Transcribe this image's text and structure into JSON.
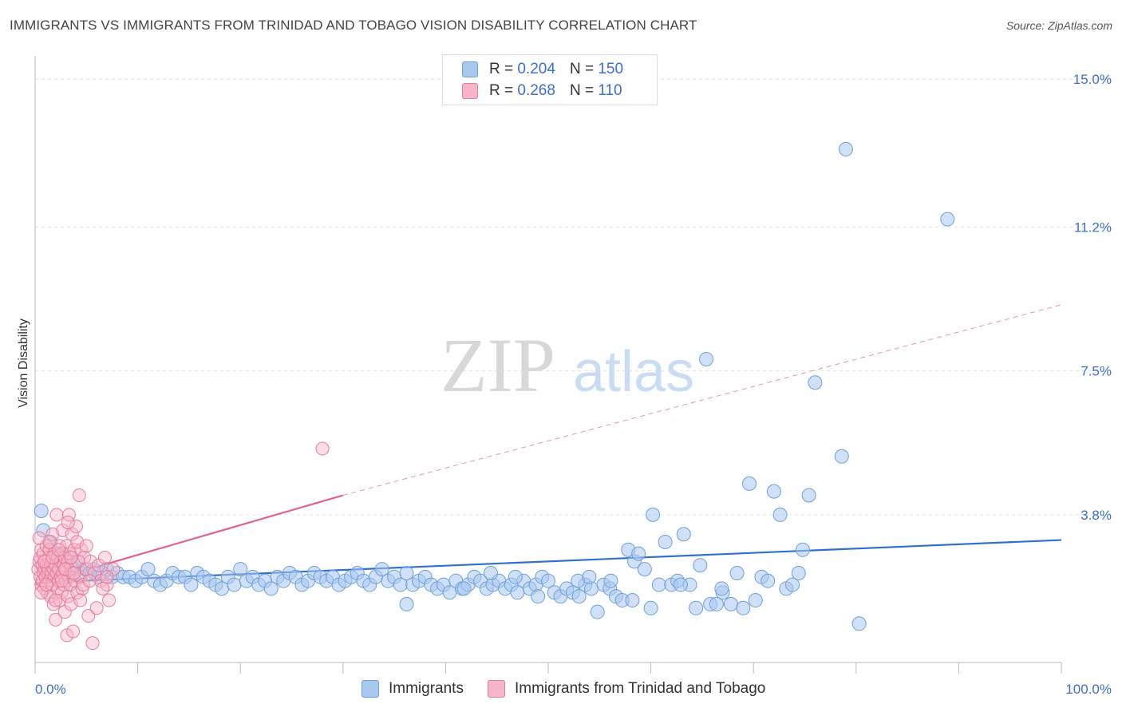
{
  "title": "IMMIGRANTS VS IMMIGRANTS FROM TRINIDAD AND TOBAGO VISION DISABILITY CORRELATION CHART",
  "source": "Source: ZipAtlas.com",
  "watermark": {
    "zip": "ZIP",
    "atlas": "atlas"
  },
  "legend": {
    "rows": [
      {
        "r_label": "R =",
        "r_value": "0.204",
        "n_label": "N =",
        "n_value": "150"
      },
      {
        "r_label": "R =",
        "r_value": "0.268",
        "n_label": "N =",
        "n_value": "110"
      }
    ]
  },
  "bottom_legend": {
    "series1": "Immigrants",
    "series2": "Immigrants from Trinidad and Tobago"
  },
  "colors": {
    "blue_fill": "#a9c8f0",
    "blue_stroke": "#6f9fd8",
    "blue_line": "#2e6fd0",
    "pink_fill": "#f6b6c8",
    "pink_stroke": "#e57d9d",
    "pink_line": "#e0648c",
    "tick_label": "#3b6fd1",
    "grid": "#e3e3e3"
  },
  "chart_data": {
    "type": "scatter",
    "title": "IMMIGRANTS VS IMMIGRANTS FROM TRINIDAD AND TOBAGO VISION DISABILITY CORRELATION CHART",
    "xlabel": "",
    "ylabel": "Vision Disability",
    "xlim": [
      0,
      100
    ],
    "ylim": [
      0,
      15.6
    ],
    "x_tick_labels": [
      "0.0%",
      "100.0%"
    ],
    "y_ticks": [
      3.8,
      7.5,
      11.2,
      15.0
    ],
    "y_tick_labels": [
      "3.8%",
      "7.5%",
      "11.2%",
      "15.0%"
    ],
    "series": [
      {
        "name": "Immigrants",
        "R": 0.204,
        "N": 150,
        "trend": {
          "x0": 0,
          "y0": 2.05,
          "x1": 100,
          "y1": 3.15
        },
        "points": [
          [
            0.6,
            3.9
          ],
          [
            0.8,
            3.4
          ],
          [
            1.5,
            3.1
          ],
          [
            1.9,
            2.8
          ],
          [
            2.2,
            2.8
          ],
          [
            2.5,
            2.6
          ],
          [
            2.8,
            2.8
          ],
          [
            3.1,
            2.5
          ],
          [
            3.4,
            2.7
          ],
          [
            3.8,
            2.4
          ],
          [
            4.2,
            2.6
          ],
          [
            4.5,
            2.3
          ],
          [
            4.9,
            2.4
          ],
          [
            5.3,
            2.3
          ],
          [
            5.7,
            2.4
          ],
          [
            6.2,
            2.2
          ],
          [
            6.6,
            2.3
          ],
          [
            7.0,
            2.4
          ],
          [
            7.5,
            2.2
          ],
          [
            8.0,
            2.3
          ],
          [
            8.6,
            2.2
          ],
          [
            9.2,
            2.2
          ],
          [
            9.8,
            2.1
          ],
          [
            10.4,
            2.2
          ],
          [
            11.0,
            2.4
          ],
          [
            11.6,
            2.1
          ],
          [
            12.2,
            2.0
          ],
          [
            12.8,
            2.1
          ],
          [
            13.4,
            2.3
          ],
          [
            14.0,
            2.2
          ],
          [
            14.6,
            2.2
          ],
          [
            15.2,
            2.0
          ],
          [
            15.8,
            2.3
          ],
          [
            16.4,
            2.2
          ],
          [
            17.0,
            2.1
          ],
          [
            17.6,
            2.0
          ],
          [
            18.2,
            1.9
          ],
          [
            18.8,
            2.2
          ],
          [
            19.4,
            2.0
          ],
          [
            20.0,
            2.4
          ],
          [
            20.6,
            2.1
          ],
          [
            21.2,
            2.2
          ],
          [
            21.8,
            2.0
          ],
          [
            22.4,
            2.1
          ],
          [
            23.0,
            1.9
          ],
          [
            23.6,
            2.2
          ],
          [
            24.2,
            2.1
          ],
          [
            24.8,
            2.3
          ],
          [
            25.4,
            2.2
          ],
          [
            26.0,
            2.0
          ],
          [
            26.6,
            2.1
          ],
          [
            27.2,
            2.3
          ],
          [
            27.8,
            2.2
          ],
          [
            28.4,
            2.1
          ],
          [
            29.0,
            2.2
          ],
          [
            29.6,
            2.0
          ],
          [
            30.2,
            2.1
          ],
          [
            30.8,
            2.2
          ],
          [
            31.4,
            2.3
          ],
          [
            32.0,
            2.1
          ],
          [
            32.6,
            2.0
          ],
          [
            33.2,
            2.2
          ],
          [
            33.8,
            2.4
          ],
          [
            34.4,
            2.1
          ],
          [
            35.0,
            2.2
          ],
          [
            35.6,
            2.0
          ],
          [
            36.2,
            2.3
          ],
          [
            36.8,
            2.0
          ],
          [
            37.4,
            2.1
          ],
          [
            38.0,
            2.2
          ],
          [
            38.6,
            2.0
          ],
          [
            39.2,
            1.9
          ],
          [
            39.8,
            2.0
          ],
          [
            40.4,
            1.8
          ],
          [
            41.0,
            2.1
          ],
          [
            41.6,
            1.9
          ],
          [
            42.2,
            2.0
          ],
          [
            42.8,
            2.2
          ],
          [
            43.4,
            2.1
          ],
          [
            44.0,
            1.9
          ],
          [
            44.6,
            2.0
          ],
          [
            45.2,
            2.1
          ],
          [
            45.8,
            1.9
          ],
          [
            46.4,
            2.0
          ],
          [
            47.0,
            1.8
          ],
          [
            47.6,
            2.1
          ],
          [
            48.2,
            1.9
          ],
          [
            48.8,
            2.0
          ],
          [
            49.4,
            2.2
          ],
          [
            50.0,
            2.1
          ],
          [
            50.6,
            1.8
          ],
          [
            51.2,
            1.7
          ],
          [
            51.8,
            1.9
          ],
          [
            52.4,
            1.8
          ],
          [
            53.0,
            1.7
          ],
          [
            53.6,
            2.0
          ],
          [
            54.2,
            1.9
          ],
          [
            54.8,
            1.3
          ],
          [
            55.4,
            2.0
          ],
          [
            56.0,
            1.9
          ],
          [
            56.6,
            1.7
          ],
          [
            57.2,
            1.6
          ],
          [
            57.8,
            2.9
          ],
          [
            58.4,
            2.6
          ],
          [
            58.8,
            2.8
          ],
          [
            59.4,
            2.4
          ],
          [
            60.2,
            3.8
          ],
          [
            60.8,
            2.0
          ],
          [
            61.4,
            3.1
          ],
          [
            62.0,
            2.0
          ],
          [
            62.6,
            2.1
          ],
          [
            63.2,
            3.3
          ],
          [
            63.8,
            2.0
          ],
          [
            64.4,
            1.4
          ],
          [
            64.8,
            2.5
          ],
          [
            65.4,
            7.8
          ],
          [
            65.8,
            1.5
          ],
          [
            66.4,
            1.5
          ],
          [
            67.0,
            1.8
          ],
          [
            67.8,
            1.5
          ],
          [
            68.4,
            2.3
          ],
          [
            69.0,
            1.4
          ],
          [
            69.6,
            4.6
          ],
          [
            70.2,
            1.6
          ],
          [
            70.8,
            2.2
          ],
          [
            71.4,
            2.1
          ],
          [
            72.0,
            4.4
          ],
          [
            72.6,
            3.8
          ],
          [
            73.2,
            1.9
          ],
          [
            73.8,
            2.0
          ],
          [
            74.4,
            2.3
          ],
          [
            74.8,
            2.9
          ],
          [
            75.4,
            4.3
          ],
          [
            76.0,
            7.2
          ],
          [
            78.6,
            5.3
          ],
          [
            79.0,
            13.2
          ],
          [
            80.3,
            1.0
          ],
          [
            88.9,
            11.4
          ],
          [
            36.2,
            1.5
          ],
          [
            41.8,
            1.9
          ],
          [
            44.4,
            2.3
          ],
          [
            46.8,
            2.2
          ],
          [
            49.0,
            1.7
          ],
          [
            52.9,
            2.1
          ],
          [
            54.0,
            2.2
          ],
          [
            56.1,
            2.1
          ],
          [
            58.2,
            1.6
          ],
          [
            60.0,
            1.4
          ],
          [
            62.9,
            2.0
          ],
          [
            66.9,
            1.9
          ]
        ]
      },
      {
        "name": "Immigrants from Trinidad and Tobago",
        "R": 0.268,
        "N": 110,
        "trend": {
          "x0": 0,
          "y0": 2.0,
          "x1": 30,
          "y1": 4.3
        },
        "trend_dashed": {
          "x0": 30,
          "y0": 4.3,
          "x1": 100,
          "y1": 9.2
        },
        "points": [
          [
            0.3,
            2.4
          ],
          [
            0.4,
            2.6
          ],
          [
            0.5,
            2.2
          ],
          [
            0.5,
            2.7
          ],
          [
            0.6,
            2.9
          ],
          [
            0.6,
            2.0
          ],
          [
            0.7,
            2.5
          ],
          [
            0.7,
            2.1
          ],
          [
            0.8,
            2.3
          ],
          [
            0.8,
            2.8
          ],
          [
            0.9,
            2.4
          ],
          [
            0.9,
            1.9
          ],
          [
            1.0,
            2.6
          ],
          [
            1.0,
            2.2
          ],
          [
            1.1,
            2.5
          ],
          [
            1.1,
            3.0
          ],
          [
            1.2,
            2.3
          ],
          [
            1.2,
            1.8
          ],
          [
            1.3,
            2.7
          ],
          [
            1.3,
            2.4
          ],
          [
            1.4,
            2.1
          ],
          [
            1.4,
            2.9
          ],
          [
            1.5,
            2.5
          ],
          [
            1.5,
            1.7
          ],
          [
            1.6,
            2.3
          ],
          [
            1.6,
            2.6
          ],
          [
            1.7,
            2.0
          ],
          [
            1.7,
            3.3
          ],
          [
            1.8,
            2.4
          ],
          [
            1.8,
            1.5
          ],
          [
            1.9,
            2.8
          ],
          [
            1.9,
            2.2
          ],
          [
            2.0,
            2.5
          ],
          [
            2.0,
            1.1
          ],
          [
            2.1,
            2.3
          ],
          [
            2.1,
            3.8
          ],
          [
            2.2,
            2.7
          ],
          [
            2.2,
            1.9
          ],
          [
            2.3,
            2.4
          ],
          [
            2.3,
            2.1
          ],
          [
            2.4,
            3.0
          ],
          [
            2.4,
            1.6
          ],
          [
            2.5,
            2.6
          ],
          [
            2.5,
            2.2
          ],
          [
            2.6,
            2.8
          ],
          [
            2.6,
            1.8
          ],
          [
            2.7,
            2.3
          ],
          [
            2.7,
            3.4
          ],
          [
            2.8,
            2.5
          ],
          [
            2.8,
            2.0
          ],
          [
            2.9,
            2.7
          ],
          [
            2.9,
            1.3
          ],
          [
            3.0,
            2.4
          ],
          [
            3.0,
            2.1
          ],
          [
            3.1,
            3.0
          ],
          [
            3.1,
            0.7
          ],
          [
            3.2,
            2.6
          ],
          [
            3.2,
            1.7
          ],
          [
            3.3,
            2.2
          ],
          [
            3.3,
            3.8
          ],
          [
            3.4,
            2.8
          ],
          [
            3.4,
            2.0
          ],
          [
            3.5,
            2.5
          ],
          [
            3.5,
            1.5
          ],
          [
            3.6,
            3.3
          ],
          [
            3.6,
            2.3
          ],
          [
            3.7,
            0.8
          ],
          [
            3.8,
            2.9
          ],
          [
            3.9,
            2.1
          ],
          [
            4.0,
            3.5
          ],
          [
            4.1,
            1.8
          ],
          [
            4.2,
            2.6
          ],
          [
            4.3,
            4.3
          ],
          [
            4.4,
            2.2
          ],
          [
            4.5,
            2.9
          ],
          [
            4.6,
            1.9
          ],
          [
            4.8,
            2.7
          ],
          [
            5.0,
            2.4
          ],
          [
            5.2,
            1.2
          ],
          [
            5.4,
            2.6
          ],
          [
            5.6,
            0.5
          ],
          [
            5.8,
            2.3
          ],
          [
            6.0,
            1.4
          ],
          [
            6.2,
            2.5
          ],
          [
            6.4,
            2.1
          ],
          [
            6.8,
            2.7
          ],
          [
            7.0,
            2.0
          ],
          [
            7.2,
            1.6
          ],
          [
            7.6,
            2.4
          ],
          [
            28.0,
            5.5
          ],
          [
            0.4,
            3.2
          ],
          [
            0.6,
            1.8
          ],
          [
            0.9,
            2.6
          ],
          [
            1.1,
            2.0
          ],
          [
            1.4,
            3.1
          ],
          [
            1.7,
            2.7
          ],
          [
            2.0,
            1.6
          ],
          [
            2.3,
            2.9
          ],
          [
            2.6,
            2.1
          ],
          [
            2.9,
            2.4
          ],
          [
            3.2,
            3.6
          ],
          [
            3.5,
            2.7
          ],
          [
            3.8,
            2.3
          ],
          [
            4.1,
            3.1
          ],
          [
            4.4,
            1.6
          ],
          [
            4.7,
            2.0
          ],
          [
            5.0,
            3.0
          ],
          [
            5.3,
            2.1
          ],
          [
            6.6,
            1.9
          ],
          [
            7.0,
            2.2
          ]
        ]
      }
    ]
  }
}
